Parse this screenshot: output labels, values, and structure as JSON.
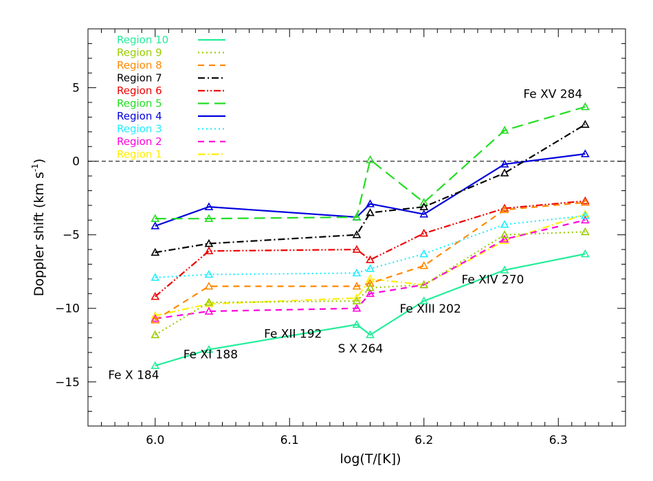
{
  "chart_data": {
    "type": "line",
    "xlabel": "log(T/[K])",
    "ylabel_main": "Doppler shift (km s",
    "ylabel_sup": "-1",
    "ylabel_tail": ")",
    "xlim": [
      5.95,
      6.35
    ],
    "ylim": [
      -18,
      9
    ],
    "x_ticks": [
      6.0,
      6.1,
      6.2,
      6.3
    ],
    "x_tick_labels": [
      "6.0",
      "6.1",
      "6.2",
      "6.3"
    ],
    "y_ticks": [
      -15,
      -10,
      -5,
      0,
      5
    ],
    "y_tick_labels": [
      "−15",
      "−10",
      "−5",
      "0",
      "5"
    ],
    "zero_line": true,
    "marker": "open-triangle",
    "x": [
      6.0,
      6.04,
      6.15,
      6.16,
      6.2,
      6.26,
      6.32
    ],
    "series": [
      {
        "name": "Region 10",
        "color": "#22ee99",
        "dash": "solid",
        "values": [
          -13.9,
          -12.8,
          -11.1,
          -11.8,
          -9.5,
          -7.4,
          -6.3
        ]
      },
      {
        "name": "Region 9",
        "color": "#99cc00",
        "dash": "dotted",
        "values": [
          -11.8,
          -9.6,
          -9.5,
          -8.6,
          -8.4,
          -5.0,
          -4.8
        ]
      },
      {
        "name": "Region 8",
        "color": "#ff8800",
        "dash": "dashed",
        "values": [
          -10.8,
          -8.5,
          -8.5,
          -8.3,
          -7.1,
          -3.3,
          -2.8
        ]
      },
      {
        "name": "Region 7",
        "color": "#000000",
        "dash": "dashdot",
        "values": [
          -6.2,
          -5.6,
          -5.0,
          -3.5,
          -3.1,
          -0.8,
          2.5
        ]
      },
      {
        "name": "Region 6",
        "color": "#ee0000",
        "dash": "dashdotdot",
        "values": [
          -9.2,
          -6.1,
          -6.0,
          -6.7,
          -4.9,
          -3.2,
          -2.7
        ]
      },
      {
        "name": "Region 5",
        "color": "#22dd22",
        "dash": "longdash",
        "values": [
          -3.9,
          -3.9,
          -3.8,
          0.1,
          -2.8,
          2.1,
          3.7
        ]
      },
      {
        "name": "Region 4",
        "color": "#0000dd",
        "dash": "solid",
        "values": [
          -4.4,
          -3.1,
          -3.8,
          -2.9,
          -3.6,
          -0.2,
          0.5
        ]
      },
      {
        "name": "Region 3",
        "color": "#22eeff",
        "dash": "dotted",
        "values": [
          -7.9,
          -7.7,
          -7.6,
          -7.3,
          -6.3,
          -4.3,
          -3.7
        ]
      },
      {
        "name": "Region 2",
        "color": "#ff00dd",
        "dash": "dashed",
        "values": [
          -10.7,
          -10.2,
          -10.0,
          -9.0,
          -8.4,
          -5.3,
          -4.0
        ]
      },
      {
        "name": "Region 1",
        "color": "#ffee00",
        "dash": "dashdot",
        "values": [
          -10.5,
          -9.7,
          -9.3,
          -8.0,
          -8.4,
          -5.4,
          -3.6
        ]
      }
    ],
    "annotations": [
      {
        "text": "Fe X 184",
        "x": 5.965,
        "y": -14.8
      },
      {
        "text": "Fe XI 188",
        "x": 6.021,
        "y": -13.4
      },
      {
        "text": "Fe XII 192",
        "x": 6.081,
        "y": -12.0
      },
      {
        "text": "S X 264",
        "x": 6.136,
        "y": -13.0
      },
      {
        "text": "Fe XIII 202",
        "x": 6.182,
        "y": -10.3
      },
      {
        "text": "Fe XIV 270",
        "x": 6.228,
        "y": -8.3
      },
      {
        "text": "Fe XV 284",
        "x": 6.274,
        "y": 4.3
      }
    ]
  }
}
